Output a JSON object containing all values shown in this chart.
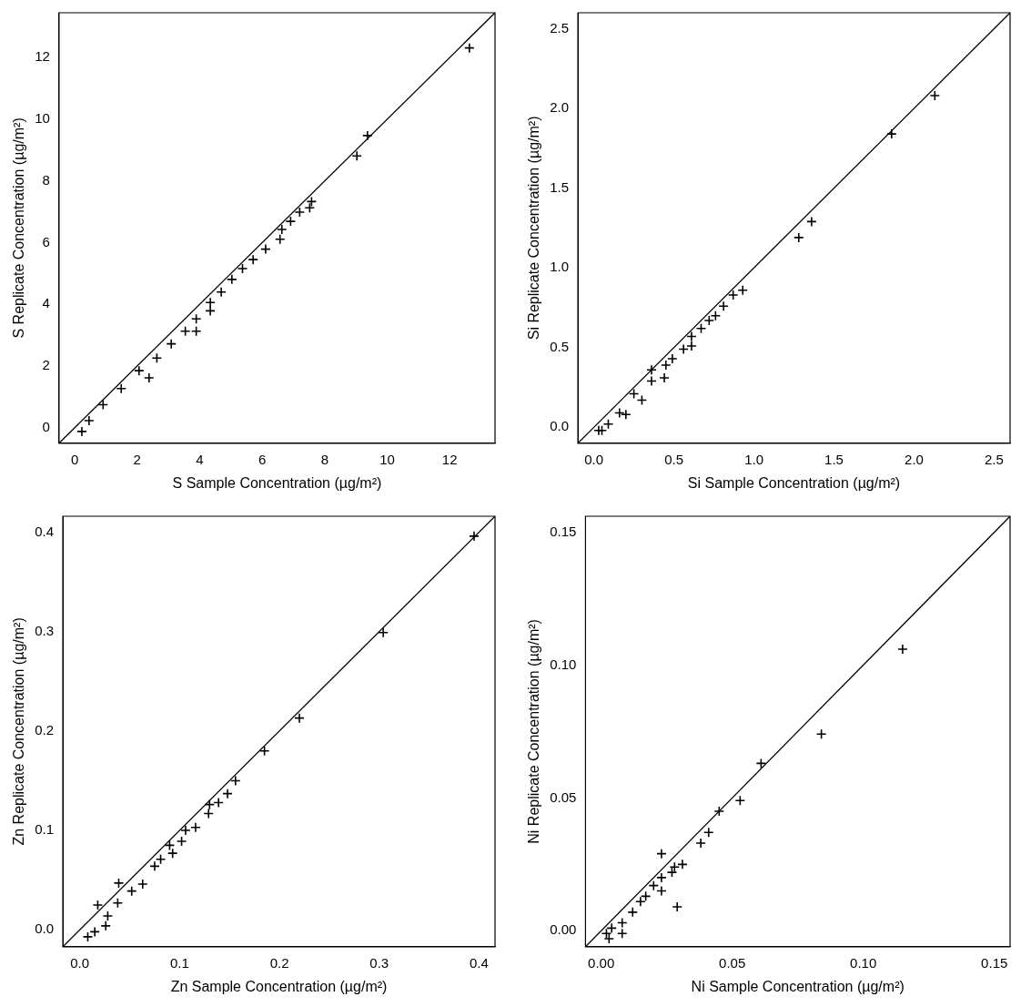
{
  "chart_data": [
    {
      "type": "scatter",
      "xlabel": "S Sample Concentration (µg/m²)",
      "ylabel": "S Replicate Concentration (µg/m²)",
      "grid": false,
      "legend": false,
      "xlim": [
        -0.5,
        13.45
      ],
      "ylim": [
        -0.5,
        13.45
      ],
      "xticks": [
        0,
        2,
        4,
        6,
        8,
        10,
        12
      ],
      "yticks": [
        0,
        2,
        4,
        6,
        8,
        10,
        12
      ],
      "series": [
        {
          "marker": "cross",
          "color": "#000000",
          "x": [
            12.63,
            9.37,
            9.03,
            7.58,
            7.52,
            7.2,
            6.91,
            6.63,
            6.57,
            6.11,
            5.71,
            5.37,
            5.03,
            4.69,
            4.34,
            4.34,
            3.89,
            3.89,
            3.54,
            3.09,
            2.63,
            2.38,
            2.06,
            1.49,
            0.91,
            0.46,
            0.23
          ],
          "values": [
            12.31,
            9.47,
            8.81,
            7.33,
            7.13,
            6.99,
            6.69,
            6.43,
            6.11,
            5.79,
            5.45,
            5.16,
            4.81,
            4.4,
            4.06,
            3.79,
            3.13,
            3.53,
            3.13,
            2.72,
            2.26,
            1.62,
            1.85,
            1.27,
            0.75,
            0.23,
            -0.12
          ]
        },
        {
          "type": "line",
          "color": "#000000",
          "x": [
            -0.5,
            13.45
          ],
          "values": [
            -0.5,
            13.45
          ]
        }
      ]
    },
    {
      "type": "scatter",
      "xlabel": "Si Sample Concentration (µg/m²)",
      "ylabel": "Si Replicate Concentration (µg/m²)",
      "grid": false,
      "legend": false,
      "xlim": [
        -0.1,
        2.6
      ],
      "ylim": [
        -0.1,
        2.6
      ],
      "xticks": [
        {
          "value": 0,
          "label": "0.0"
        },
        0.5,
        {
          "value": 1,
          "label": "1.0"
        },
        1.5,
        {
          "value": 2,
          "label": "2.0"
        },
        2.5
      ],
      "yticks": [
        {
          "value": 0,
          "label": "0.0"
        },
        0.5,
        {
          "value": 1,
          "label": "1.0"
        },
        1.5,
        {
          "value": 2,
          "label": "2.0"
        },
        2.5
      ],
      "series": [
        {
          "marker": "cross",
          "color": "#000000",
          "x": [
            2.13,
            1.86,
            1.36,
            1.28,
            0.93,
            0.87,
            0.81,
            0.76,
            0.72,
            0.67,
            0.61,
            0.61,
            0.56,
            0.49,
            0.45,
            0.44,
            0.36,
            0.36,
            0.3,
            0.25,
            0.2,
            0.16,
            0.09,
            0.05,
            0.03
          ],
          "values": [
            2.08,
            1.84,
            1.29,
            1.19,
            0.86,
            0.83,
            0.76,
            0.7,
            0.67,
            0.62,
            0.57,
            0.51,
            0.49,
            0.43,
            0.39,
            0.31,
            0.36,
            0.29,
            0.17,
            0.21,
            0.08,
            0.09,
            0.02,
            -0.02,
            -0.02
          ]
        },
        {
          "type": "line",
          "color": "#000000",
          "x": [
            -0.1,
            2.6
          ],
          "values": [
            -0.1,
            2.6
          ]
        }
      ]
    },
    {
      "type": "scatter",
      "xlabel": "Zn Sample Concentration (µg/m²)",
      "ylabel": "Zn Replicate Concentration (µg/m²)",
      "grid": false,
      "legend": false,
      "xlim": [
        -0.017,
        0.416
      ],
      "ylim": [
        -0.017,
        0.416
      ],
      "xticks": [
        {
          "value": 0,
          "label": "0.0"
        },
        0.1,
        0.2,
        0.3,
        0.4
      ],
      "yticks": [
        {
          "value": 0,
          "label": "0.0"
        },
        0.1,
        0.2,
        0.3,
        0.4
      ],
      "series": [
        {
          "marker": "cross",
          "color": "#000000",
          "x": [
            0.395,
            0.304,
            0.22,
            0.185,
            0.156,
            0.148,
            0.139,
            0.13,
            0.129,
            0.116,
            0.106,
            0.102,
            0.09,
            0.093,
            0.081,
            0.075,
            0.063,
            0.039,
            0.052,
            0.038,
            0.018,
            0.026,
            0.015,
            0.008,
            0.028
          ],
          "values": [
            0.396,
            0.299,
            0.213,
            0.18,
            0.15,
            0.137,
            0.128,
            0.126,
            0.117,
            0.103,
            0.1,
            0.089,
            0.085,
            0.077,
            0.071,
            0.064,
            0.046,
            0.047,
            0.039,
            0.027,
            0.025,
            0.004,
            -0.002,
            -0.007,
            0.014
          ]
        },
        {
          "type": "line",
          "color": "#000000",
          "x": [
            -0.017,
            0.416
          ],
          "values": [
            -0.017,
            0.416
          ]
        }
      ]
    },
    {
      "type": "scatter",
      "xlabel": "Ni Sample Concentration (µg/m²)",
      "ylabel": "Ni Replicate Concentration (µg/m²)",
      "grid": false,
      "legend": false,
      "xlim": [
        -0.006,
        0.156
      ],
      "ylim": [
        -0.006,
        0.156
      ],
      "xticks": [
        {
          "value": 0,
          "label": "0.00"
        },
        0.05,
        {
          "value": 0.1,
          "label": "0.10"
        },
        0.15
      ],
      "yticks": [
        {
          "value": 0,
          "label": "0.00"
        },
        0.05,
        {
          "value": 0.1,
          "label": "0.10"
        },
        0.15
      ],
      "series": [
        {
          "marker": "cross",
          "color": "#000000",
          "x": [
            0.115,
            0.084,
            0.061,
            0.053,
            0.045,
            0.041,
            0.038,
            0.023,
            0.031,
            0.028,
            0.027,
            0.029,
            0.023,
            0.023,
            0.02,
            0.017,
            0.015,
            0.012,
            0.008,
            0.008,
            0.004,
            0.002,
            0.003
          ],
          "values": [
            0.106,
            0.074,
            0.063,
            0.049,
            0.045,
            0.037,
            0.033,
            0.029,
            0.025,
            0.024,
            0.022,
            0.009,
            0.02,
            0.015,
            0.017,
            0.013,
            0.011,
            0.007,
            0.003,
            -0.001,
            0.001,
            -0.001,
            -0.003
          ]
        },
        {
          "type": "line",
          "color": "#000000",
          "x": [
            -0.006,
            0.156
          ],
          "values": [
            -0.006,
            0.156
          ]
        }
      ]
    }
  ]
}
